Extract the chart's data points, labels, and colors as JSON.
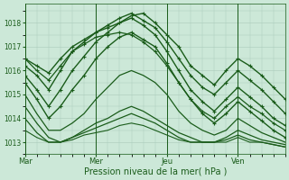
{
  "title": "",
  "xlabel": "Pression niveau de la mer( hPa )",
  "ylabel": "",
  "bg_color": "#cce8d8",
  "plot_bg_color": "#cce8d8",
  "grid_color": "#aacbba",
  "line_color": "#1a5c1a",
  "ylim": [
    1012.5,
    1018.8
  ],
  "yticks": [
    1013,
    1014,
    1015,
    1016,
    1017,
    1018
  ],
  "xtick_labels": [
    "Mar",
    "Mer",
    "Jeu",
    "Ven"
  ],
  "xtick_pos": [
    0,
    36,
    72,
    108
  ],
  "total_steps": 132,
  "lines": [
    {
      "y": [
        1016.5,
        1016.2,
        1015.9,
        1016.5,
        1017.0,
        1017.3,
        1017.6,
        1017.8,
        1018.0,
        1018.3,
        1018.4,
        1018.0,
        1017.5,
        1017.0,
        1016.2,
        1015.8,
        1015.4,
        1016.0,
        1016.5,
        1016.2,
        1015.8,
        1015.3,
        1014.8
      ],
      "marker": true,
      "lw": 1.0
    },
    {
      "y": [
        1016.2,
        1015.8,
        1015.2,
        1016.0,
        1016.8,
        1017.2,
        1017.6,
        1017.9,
        1018.2,
        1018.4,
        1018.1,
        1017.8,
        1017.2,
        1016.5,
        1015.8,
        1015.3,
        1015.0,
        1015.5,
        1016.0,
        1015.6,
        1015.2,
        1014.7,
        1014.2
      ],
      "marker": true,
      "lw": 1.0
    },
    {
      "y": [
        1015.8,
        1015.2,
        1014.5,
        1015.2,
        1016.0,
        1016.6,
        1017.2,
        1017.6,
        1018.0,
        1018.2,
        1017.9,
        1017.5,
        1016.8,
        1016.0,
        1015.2,
        1014.7,
        1014.3,
        1014.8,
        1015.3,
        1014.9,
        1014.5,
        1014.0,
        1013.7
      ],
      "marker": true,
      "lw": 1.0
    },
    {
      "y": [
        1015.5,
        1014.8,
        1014.0,
        1014.5,
        1015.2,
        1015.8,
        1016.5,
        1017.0,
        1017.4,
        1017.6,
        1017.3,
        1017.0,
        1016.3,
        1015.5,
        1014.8,
        1014.2,
        1013.8,
        1014.2,
        1014.7,
        1014.3,
        1013.9,
        1013.5,
        1013.2
      ],
      "marker": true,
      "lw": 1.0
    },
    {
      "y": [
        1015.0,
        1014.2,
        1013.5,
        1013.5,
        1013.8,
        1014.2,
        1014.8,
        1015.3,
        1015.8,
        1016.0,
        1015.8,
        1015.5,
        1015.0,
        1014.3,
        1013.8,
        1013.5,
        1013.3,
        1013.5,
        1014.0,
        1013.7,
        1013.4,
        1013.2,
        1013.0
      ],
      "marker": false,
      "lw": 0.9
    },
    {
      "y": [
        1014.5,
        1013.8,
        1013.2,
        1013.0,
        1013.2,
        1013.5,
        1013.8,
        1014.0,
        1014.3,
        1014.5,
        1014.3,
        1014.0,
        1013.7,
        1013.4,
        1013.2,
        1013.0,
        1013.0,
        1013.2,
        1013.5,
        1013.3,
        1013.1,
        1013.0,
        1012.9
      ],
      "marker": false,
      "lw": 0.9
    },
    {
      "y": [
        1014.0,
        1013.4,
        1013.0,
        1013.0,
        1013.2,
        1013.4,
        1013.6,
        1013.8,
        1014.0,
        1014.2,
        1014.0,
        1013.8,
        1013.5,
        1013.2,
        1013.0,
        1013.0,
        1013.0,
        1013.1,
        1013.3,
        1013.1,
        1013.0,
        1012.9,
        1012.8
      ],
      "marker": false,
      "lw": 0.9
    },
    {
      "y": [
        1013.5,
        1013.2,
        1013.0,
        1013.0,
        1013.1,
        1013.3,
        1013.4,
        1013.5,
        1013.7,
        1013.8,
        1013.7,
        1013.5,
        1013.3,
        1013.1,
        1013.0,
        1013.0,
        1013.0,
        1013.0,
        1013.2,
        1013.0,
        1013.0,
        1012.9,
        1012.8
      ],
      "marker": false,
      "lw": 0.8
    },
    {
      "y": [
        1016.5,
        1016.0,
        1015.6,
        1016.2,
        1016.8,
        1017.1,
        1017.4,
        1017.5,
        1017.6,
        1017.5,
        1017.2,
        1016.8,
        1016.2,
        1015.5,
        1014.8,
        1014.3,
        1014.0,
        1014.5,
        1014.9,
        1014.5,
        1014.2,
        1013.8,
        1013.5
      ],
      "marker": true,
      "lw": 0.9
    }
  ],
  "figsize": [
    3.2,
    2.0
  ],
  "dpi": 100
}
